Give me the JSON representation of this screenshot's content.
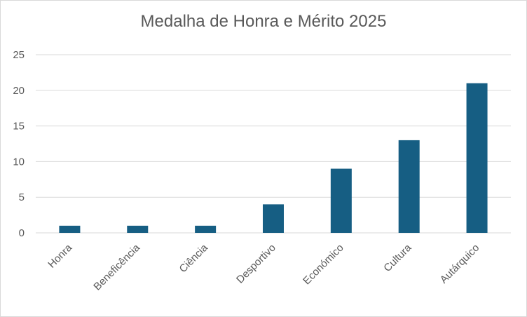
{
  "chart_data": {
    "type": "bar",
    "title": "Medalha de Honra e Mérito 2025",
    "categories": [
      "Honra",
      "Beneficência",
      "Ciência",
      "Desportivo",
      "Económico",
      "Cultura",
      "Autárquico"
    ],
    "values": [
      1,
      1,
      1,
      4,
      9,
      13,
      21
    ],
    "xlabel": "",
    "ylabel": "",
    "ylim": [
      0,
      25
    ],
    "yticks": [
      0,
      5,
      10,
      15,
      20,
      25
    ],
    "grid": true,
    "legend": "none",
    "bar_color": "#165e83",
    "grid_color": "#d9d9d9"
  }
}
